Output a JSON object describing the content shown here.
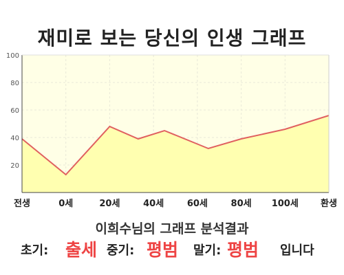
{
  "title": "재미로 보는 당신의 인생 그래프",
  "colors": {
    "plot_bg": "#ffffe6",
    "area_fill": "#ffffb0",
    "line": "#e06060",
    "grid": "#e8e8d8",
    "axis": "#444444",
    "highlight": "#ee4444"
  },
  "chart_data": {
    "type": "area",
    "categories": [
      "전생",
      "0세",
      "20세",
      "40세",
      "60세",
      "80세",
      "100세",
      "환생"
    ],
    "x": [
      -20,
      0,
      20,
      40,
      60,
      80,
      100,
      120
    ],
    "y_ticks": [
      20,
      40,
      60,
      80,
      100
    ],
    "ylim": [
      0,
      100
    ],
    "xlim": [
      -20,
      120
    ],
    "grid": true,
    "series": [
      {
        "x": [
          -20,
          0,
          20,
          33,
          45,
          65,
          80,
          100,
          120
        ],
        "values": [
          39,
          13,
          48,
          39,
          45,
          32,
          39,
          46,
          56
        ]
      }
    ]
  },
  "summary": {
    "name": "이희수님의 그래프 분석결과",
    "early_label": "초기:",
    "early_value": "출세",
    "middle_label": "중기:",
    "middle_value": "평범",
    "late_label": "말기:",
    "late_value": "평범",
    "ending": "입니다"
  }
}
